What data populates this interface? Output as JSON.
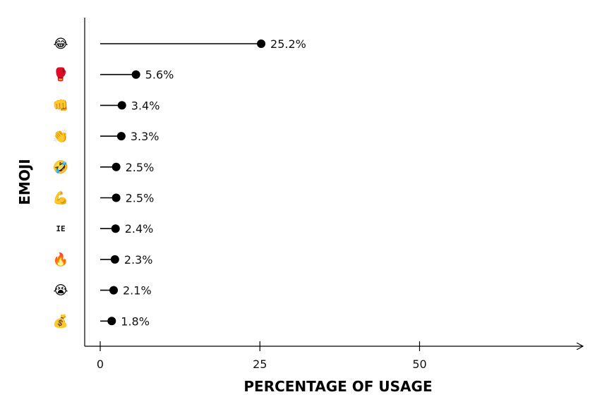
{
  "chart_data": {
    "type": "lollipop",
    "orientation": "horizontal",
    "title": "",
    "xlabel": "PERCENTAGE OF USAGE",
    "ylabel": "EMOJI",
    "xlim": [
      -5,
      76
    ],
    "xticks": [
      0,
      25,
      50
    ],
    "grid": false,
    "legend": "none",
    "value_suffix": "%",
    "colors": {
      "stem": "#000000",
      "dot": "#000000",
      "axis": "#000000"
    },
    "categories": [
      "😂",
      "🥊",
      "👊",
      "👏",
      "🤣",
      "💪",
      "IE",
      "🔥",
      "😭",
      "💰"
    ],
    "category_icons": [
      "tears-of-joy-emoji",
      "boxing-glove-emoji",
      "oncoming-fist-emoji",
      "clapping-hands-emoji",
      "rolling-laughing-emoji",
      "flexed-biceps-emoji",
      "ie-text",
      "fire-emoji",
      "loudly-crying-emoji",
      "money-bag-emoji"
    ],
    "values": [
      25.2,
      5.6,
      3.4,
      3.3,
      2.5,
      2.5,
      2.4,
      2.3,
      2.1,
      1.8
    ]
  }
}
